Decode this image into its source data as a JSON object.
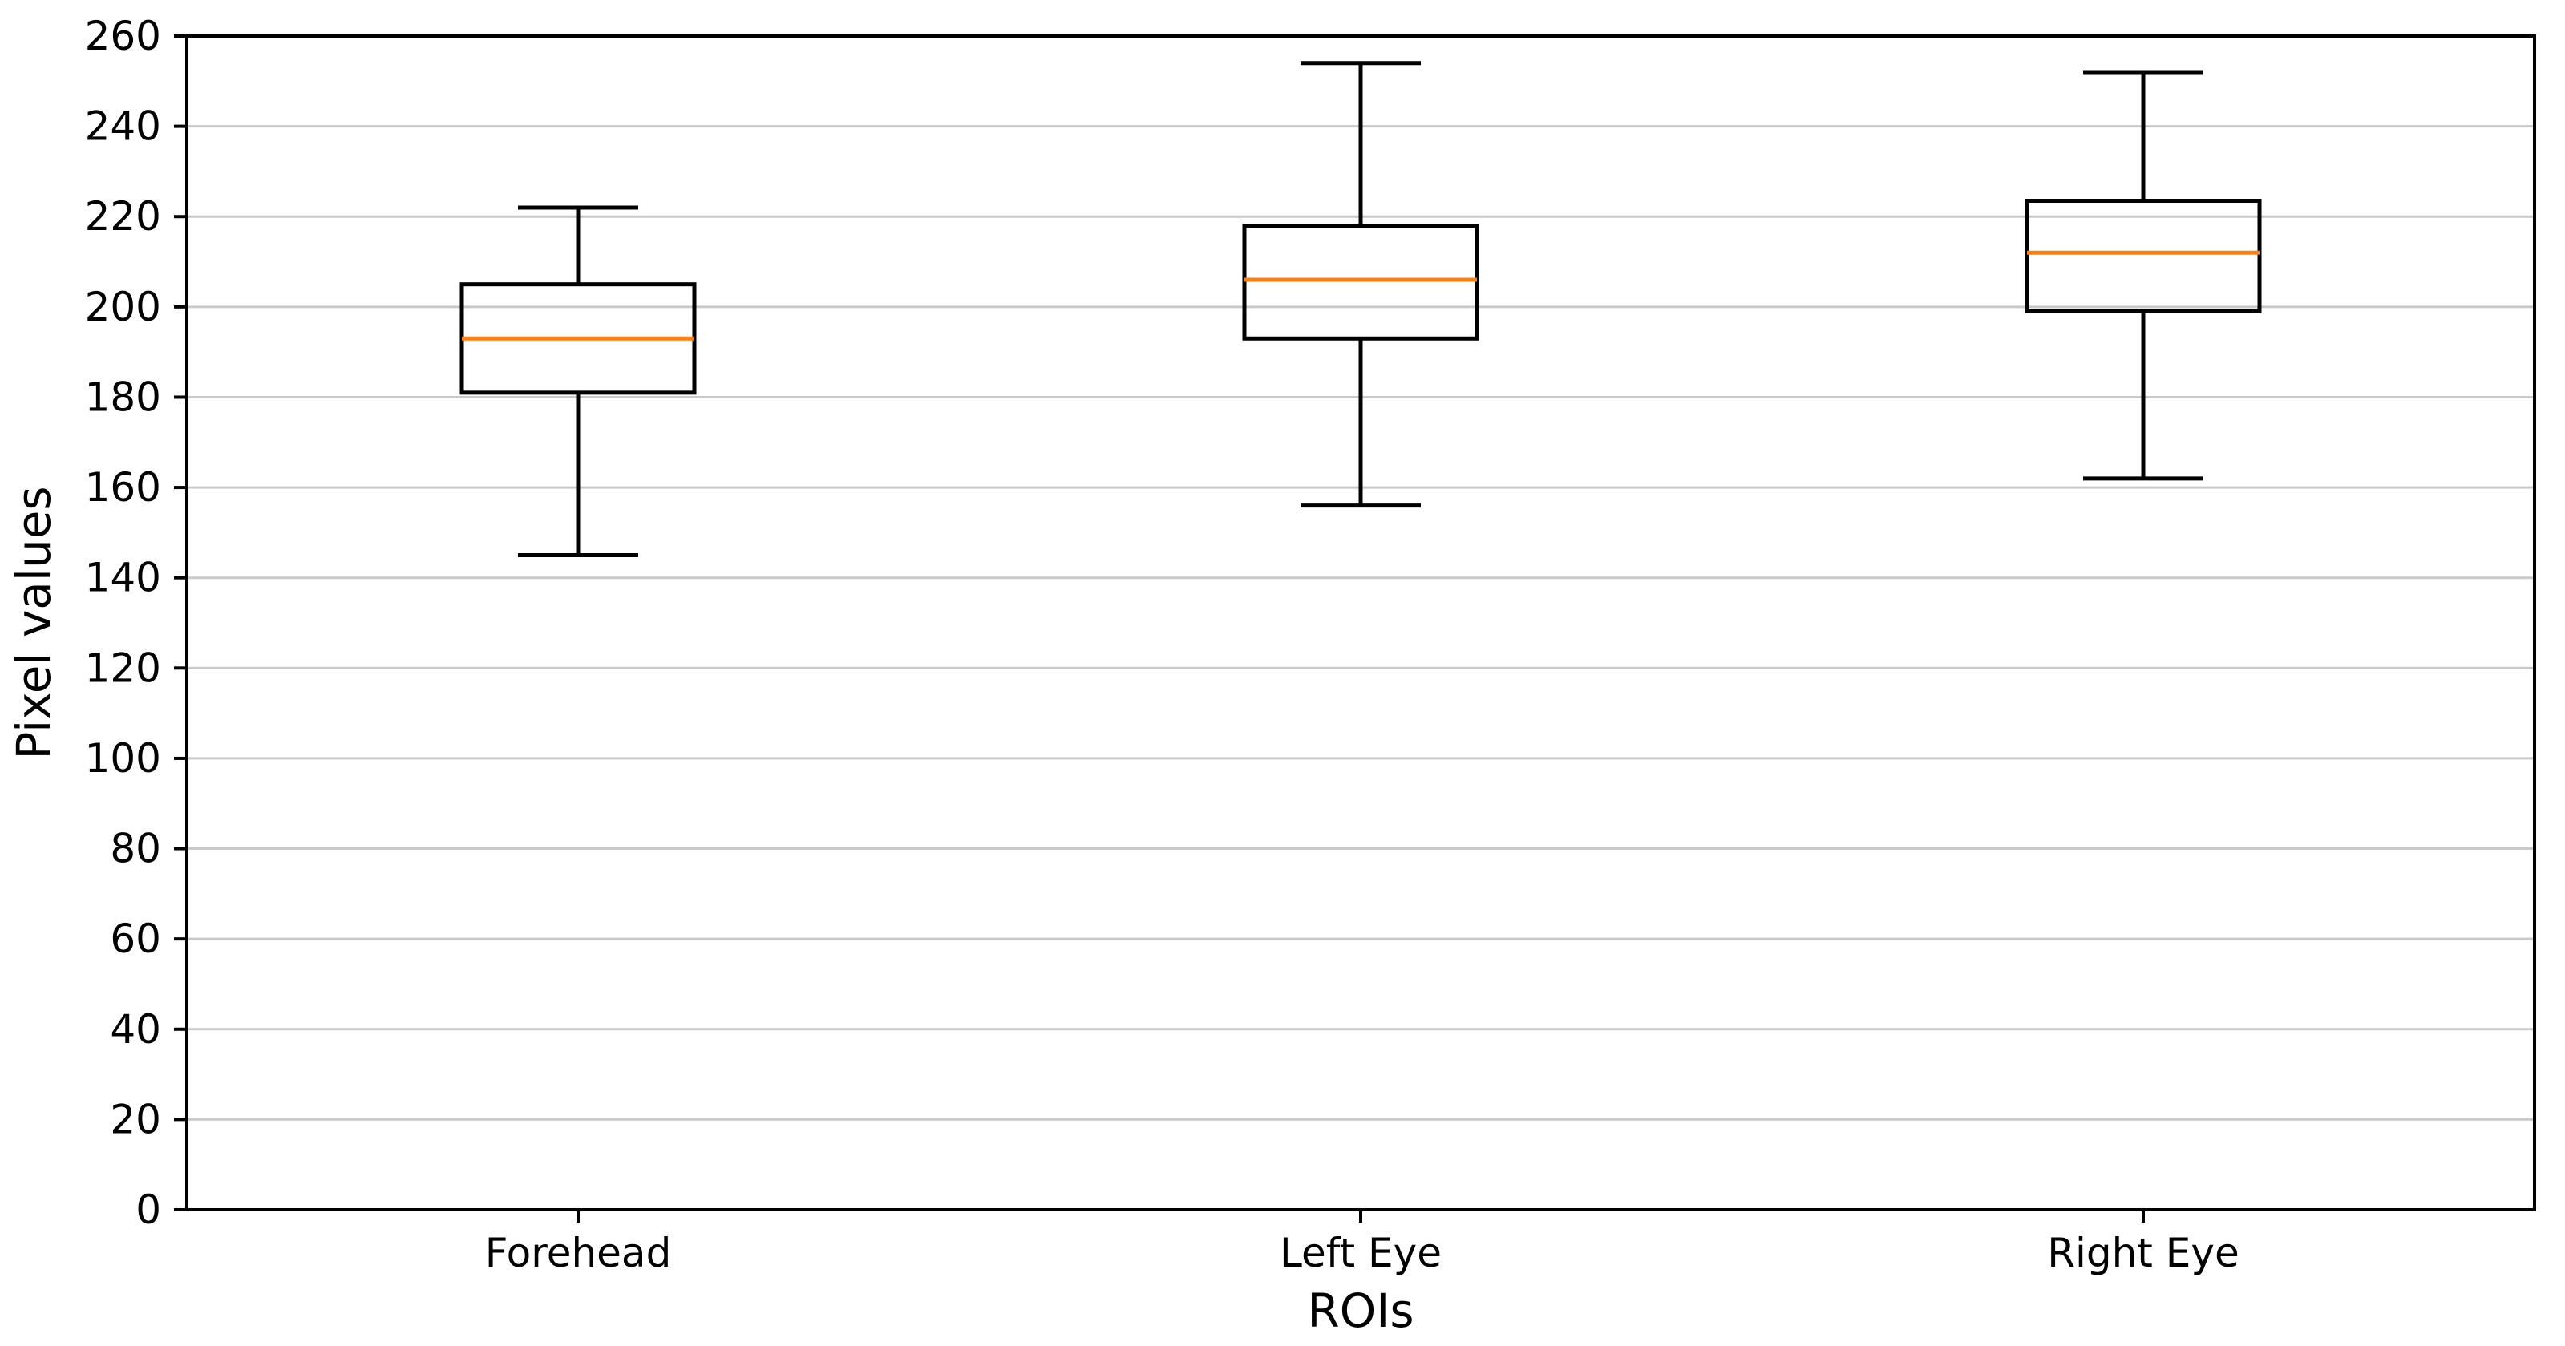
{
  "chart_data": {
    "type": "box",
    "title": "",
    "xlabel": "ROIs",
    "ylabel": "Pixel values",
    "ylim": [
      0,
      260
    ],
    "ytick_step": 20,
    "ytick_labels": [
      "0",
      "20",
      "40",
      "60",
      "80",
      "100",
      "120",
      "140",
      "160",
      "180",
      "200",
      "220",
      "240",
      "260"
    ],
    "categories": [
      "Forehead",
      "Left Eye",
      "Right Eye"
    ],
    "series": [
      {
        "name": "Forehead",
        "whisker_low": 145,
        "q1": 181,
        "median": 193,
        "q3": 205,
        "whisker_high": 222
      },
      {
        "name": "Left Eye",
        "whisker_low": 156,
        "q1": 193,
        "median": 206,
        "q3": 218,
        "whisker_high": 254
      },
      {
        "name": "Right Eye",
        "whisker_low": 162,
        "q1": 199,
        "median": 212,
        "q3": 223.5,
        "whisker_high": 252
      }
    ],
    "grid": "horizontal",
    "legend": false,
    "colors": {
      "box_edge": "#000000",
      "median": "#ff7f0e",
      "gridline": "#c9c9c9",
      "spine": "#000000",
      "background": "#ffffff",
      "text": "#000000"
    }
  }
}
